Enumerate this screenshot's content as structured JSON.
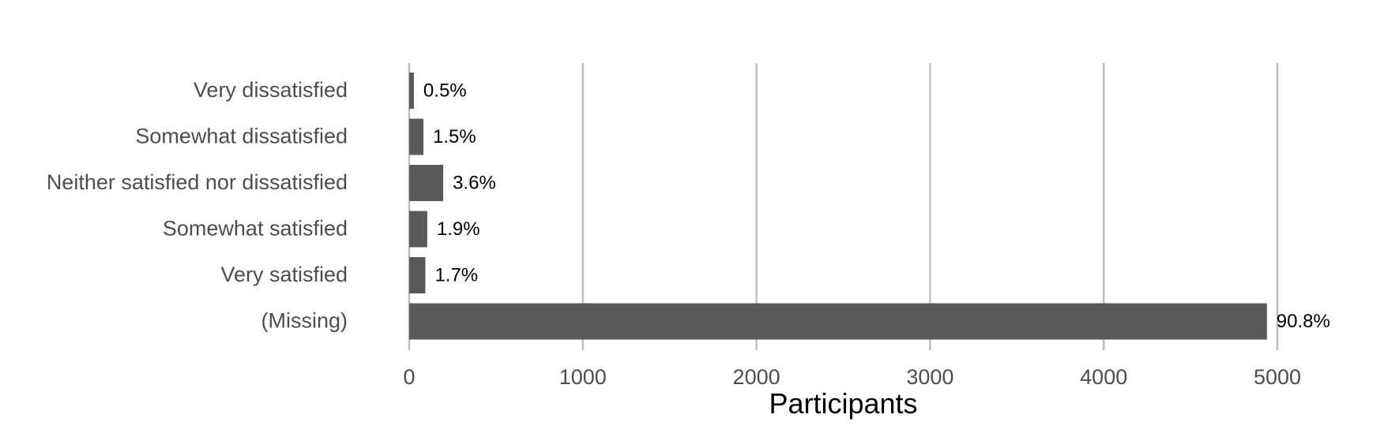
{
  "chart_data": {
    "type": "bar",
    "orientation": "horizontal",
    "categories": [
      "Very dissatisfied",
      "Somewhat dissatisfied",
      "Neither satisfied nor dissatisfied",
      "Somewhat satisfied",
      "Very satisfied",
      "(Missing)"
    ],
    "values": [
      27,
      82,
      196,
      104,
      93,
      4940
    ],
    "data_labels": [
      "0.5%",
      "1.5%",
      "3.6%",
      "1.9%",
      "1.7%",
      "90.8%"
    ],
    "xlabel": "Participants",
    "ylabel": "",
    "xlim": [
      0,
      5000
    ],
    "x_ticks": [
      0,
      1000,
      2000,
      3000,
      4000,
      5000
    ],
    "x_tick_labels": [
      "0",
      "1000",
      "2000",
      "3000",
      "4000",
      "5000"
    ],
    "grid": "vertical major",
    "legend": "none",
    "colors": {
      "bar": "#595959",
      "grid": "#bebebe",
      "label_text": "#4d4d4d",
      "data_label_text": "#000000"
    }
  }
}
